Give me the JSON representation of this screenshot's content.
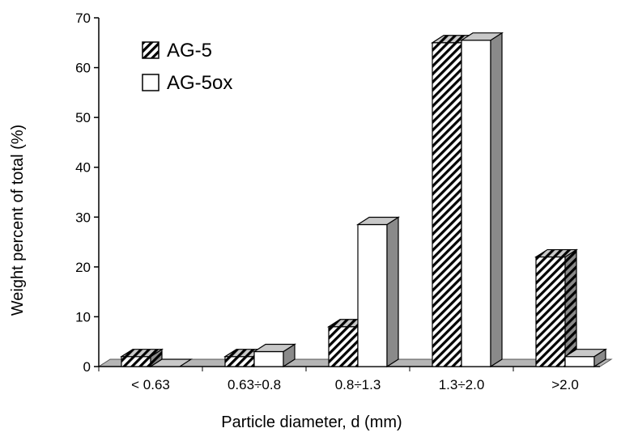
{
  "chart_data": {
    "type": "bar",
    "categories": [
      "< 0.63",
      "0.63÷0.8",
      "0.8÷1.3",
      "1.3÷2.0",
      ">2.0"
    ],
    "series": [
      {
        "name": "AG-5",
        "values": [
          2,
          2,
          8,
          65,
          22
        ],
        "fill": "hatched"
      },
      {
        "name": "AG-5ox",
        "values": [
          0,
          3,
          28.5,
          65.5,
          2
        ],
        "fill": "white"
      }
    ],
    "xlabel": "Particle diameter, d (mm)",
    "ylabel": "Weight percent of total (%)",
    "ylim": [
      0,
      70
    ],
    "yticks": [
      0,
      10,
      20,
      30,
      40,
      50,
      60,
      70
    ],
    "legend": "top-left",
    "grid": false,
    "style": "3d",
    "colors": {
      "outline": "#000000",
      "side": "#8a8a8a",
      "top": "#c8c8c8",
      "floor": "#b5b5b5"
    }
  }
}
